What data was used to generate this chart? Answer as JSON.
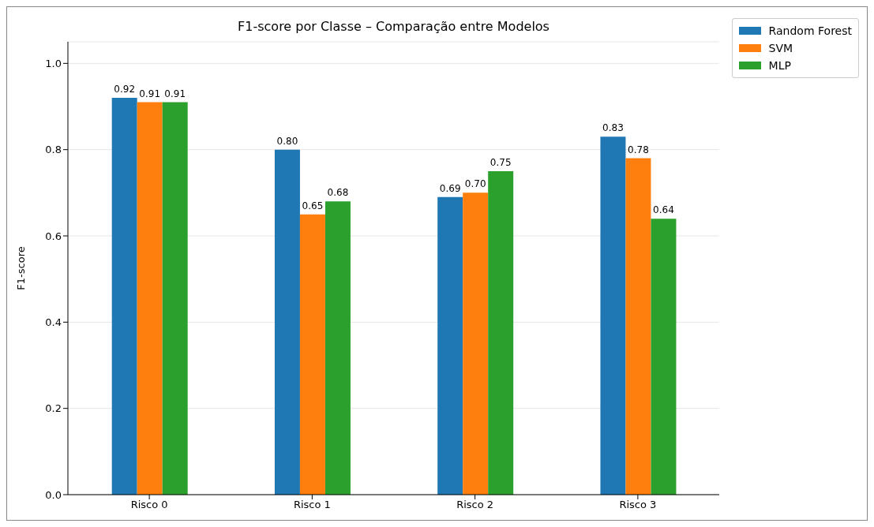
{
  "chart_data": {
    "type": "bar",
    "title": "F1-score por Classe – Comparação entre Modelos",
    "ylabel": "F1-score",
    "categories": [
      "Risco 0",
      "Risco 1",
      "Risco 2",
      "Risco 3"
    ],
    "series": [
      {
        "name": "Random Forest",
        "color": "#1f77b4",
        "values": [
          0.92,
          0.8,
          0.69,
          0.83
        ],
        "value_labels": [
          "0.92",
          "0.80",
          "0.69",
          "0.83"
        ]
      },
      {
        "name": "SVM",
        "color": "#ff7f0e",
        "values": [
          0.91,
          0.65,
          0.7,
          0.78
        ],
        "value_labels": [
          "0.91",
          "0.65",
          "0.70",
          "0.78"
        ]
      },
      {
        "name": "MLP",
        "color": "#2ca02c",
        "values": [
          0.91,
          0.68,
          0.75,
          0.64
        ],
        "value_labels": [
          "0.91",
          "0.68",
          "0.75",
          "0.64"
        ]
      }
    ],
    "ylim": [
      0,
      1.05
    ],
    "yticks": [
      {
        "value": 0,
        "label": "0.0"
      },
      {
        "value": 0.2,
        "label": "0.2"
      },
      {
        "value": 0.4,
        "label": "0.4"
      },
      {
        "value": 0.6,
        "label": "0.6"
      },
      {
        "value": 0.8,
        "label": "0.8"
      },
      {
        "value": 1,
        "label": "1.0"
      }
    ],
    "grid": "y",
    "legend": "top right"
  }
}
